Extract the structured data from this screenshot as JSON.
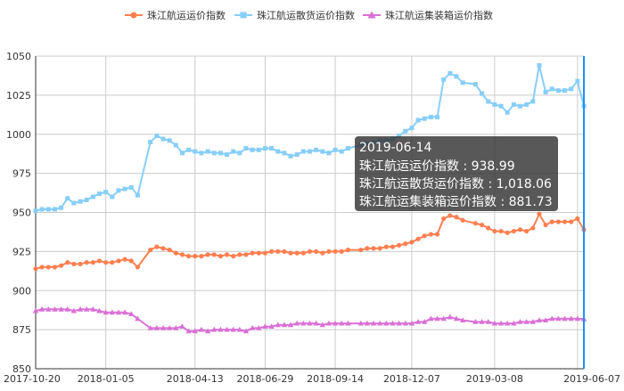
{
  "chart_data": {
    "type": "line",
    "legend_position": "top-center",
    "grid": true,
    "xlabel": "",
    "ylabel": "",
    "ylim": [
      850,
      1050
    ],
    "yticks": [
      850,
      875,
      900,
      925,
      950,
      975,
      1000,
      1025,
      1050
    ],
    "xticks": [
      "2017-10-20",
      "2018-01-05",
      "2018-04-13",
      "2018-06-29",
      "2018-09-14",
      "2018-12-07",
      "2019-03-08",
      "2019-06-07"
    ],
    "x": [
      "2017-10-20",
      "2017-10-27",
      "2017-11-03",
      "2017-11-10",
      "2017-11-17",
      "2017-11-24",
      "2017-12-01",
      "2017-12-08",
      "2017-12-15",
      "2017-12-22",
      "2017-12-29",
      "2018-01-05",
      "2018-01-12",
      "2018-01-19",
      "2018-01-26",
      "2018-02-02",
      "2018-02-09",
      "2018-02-23",
      "2018-03-02",
      "2018-03-09",
      "2018-03-16",
      "2018-03-23",
      "2018-03-30",
      "2018-04-06",
      "2018-04-13",
      "2018-04-20",
      "2018-04-27",
      "2018-05-04",
      "2018-05-11",
      "2018-05-18",
      "2018-05-25",
      "2018-06-01",
      "2018-06-08",
      "2018-06-15",
      "2018-06-22",
      "2018-06-29",
      "2018-07-06",
      "2018-07-13",
      "2018-07-20",
      "2018-07-27",
      "2018-08-03",
      "2018-08-10",
      "2018-08-17",
      "2018-08-24",
      "2018-08-31",
      "2018-09-07",
      "2018-09-14",
      "2018-09-21",
      "2018-09-28",
      "2018-10-12",
      "2018-10-19",
      "2018-10-26",
      "2018-11-02",
      "2018-11-09",
      "2018-11-16",
      "2018-11-23",
      "2018-11-30",
      "2018-12-07",
      "2018-12-14",
      "2018-12-21",
      "2018-12-28",
      "2019-01-04",
      "2019-01-11",
      "2019-01-18",
      "2019-01-25",
      "2019-02-01",
      "2019-02-15",
      "2019-02-22",
      "2019-03-01",
      "2019-03-08",
      "2019-03-15",
      "2019-03-22",
      "2019-03-29",
      "2019-04-05",
      "2019-04-12",
      "2019-04-19",
      "2019-04-26",
      "2019-05-03",
      "2019-05-10",
      "2019-05-17",
      "2019-05-24",
      "2019-05-31",
      "2019-06-07",
      "2019-06-14"
    ],
    "series": [
      {
        "name": "珠江航运运价指数",
        "color": "#ff7f50",
        "marker": "circle",
        "values": [
          914,
          915,
          915,
          915,
          916,
          918,
          917,
          917,
          918,
          918,
          919,
          918,
          918,
          919,
          920,
          919,
          915,
          926,
          928,
          927,
          926,
          924,
          923,
          922,
          922,
          922,
          923,
          923,
          922,
          923,
          922,
          923,
          923,
          924,
          924,
          924,
          925,
          925,
          925,
          924,
          924,
          924,
          925,
          925,
          924,
          925,
          925,
          925,
          926,
          926,
          927,
          927,
          927,
          928,
          928,
          929,
          930,
          931,
          933,
          935,
          936,
          936,
          946,
          948,
          947,
          945,
          943,
          942,
          940,
          938,
          938,
          937,
          938,
          939,
          938,
          940,
          949,
          942,
          944,
          944,
          944,
          944,
          946,
          938.99
        ]
      },
      {
        "name": "珠江航运散货运价指数",
        "color": "#87cefa",
        "marker": "square",
        "values": [
          951,
          952,
          952,
          952,
          953,
          959,
          956,
          957,
          958,
          960,
          962,
          963,
          960,
          964,
          965,
          966,
          961,
          995,
          999,
          997,
          996,
          993,
          988,
          990,
          989,
          988,
          989,
          988,
          988,
          987,
          989,
          988,
          991,
          990,
          990,
          991,
          991,
          989,
          988,
          986,
          987,
          989,
          989,
          990,
          989,
          988,
          990,
          989,
          991,
          993,
          994,
          995,
          996,
          996,
          997,
          999,
          1002,
          1004,
          1009,
          1010,
          1011,
          1011,
          1035,
          1039,
          1037,
          1033,
          1032,
          1026,
          1021,
          1019,
          1018,
          1014,
          1019,
          1018,
          1019,
          1021,
          1044,
          1027,
          1029,
          1028,
          1028,
          1029,
          1034,
          1018.06
        ]
      },
      {
        "name": "珠江航运集装箱运价指数",
        "color": "#da70d6",
        "marker": "triangle",
        "values": [
          887,
          888,
          888,
          888,
          888,
          888,
          887,
          888,
          888,
          888,
          887,
          886,
          886,
          886,
          886,
          885,
          882,
          876,
          876,
          876,
          876,
          876,
          877,
          874,
          874,
          875,
          874,
          875,
          875,
          875,
          875,
          875,
          874,
          876,
          876,
          877,
          877,
          878,
          878,
          878,
          879,
          879,
          879,
          879,
          878,
          879,
          879,
          879,
          879,
          879,
          879,
          879,
          879,
          879,
          879,
          879,
          879,
          879,
          880,
          880,
          882,
          882,
          882,
          883,
          882,
          881,
          880,
          880,
          880,
          879,
          879,
          879,
          879,
          880,
          880,
          880,
          881,
          881,
          882,
          882,
          882,
          882,
          882,
          881.73
        ]
      }
    ],
    "tooltip": {
      "title": "2019-06-14",
      "rows": [
        "珠江航运运价指数 : 938.99",
        "珠江航运散货运价指数 : 1,018.06",
        "珠江航运集装箱运价指数 : 881.73"
      ]
    }
  }
}
